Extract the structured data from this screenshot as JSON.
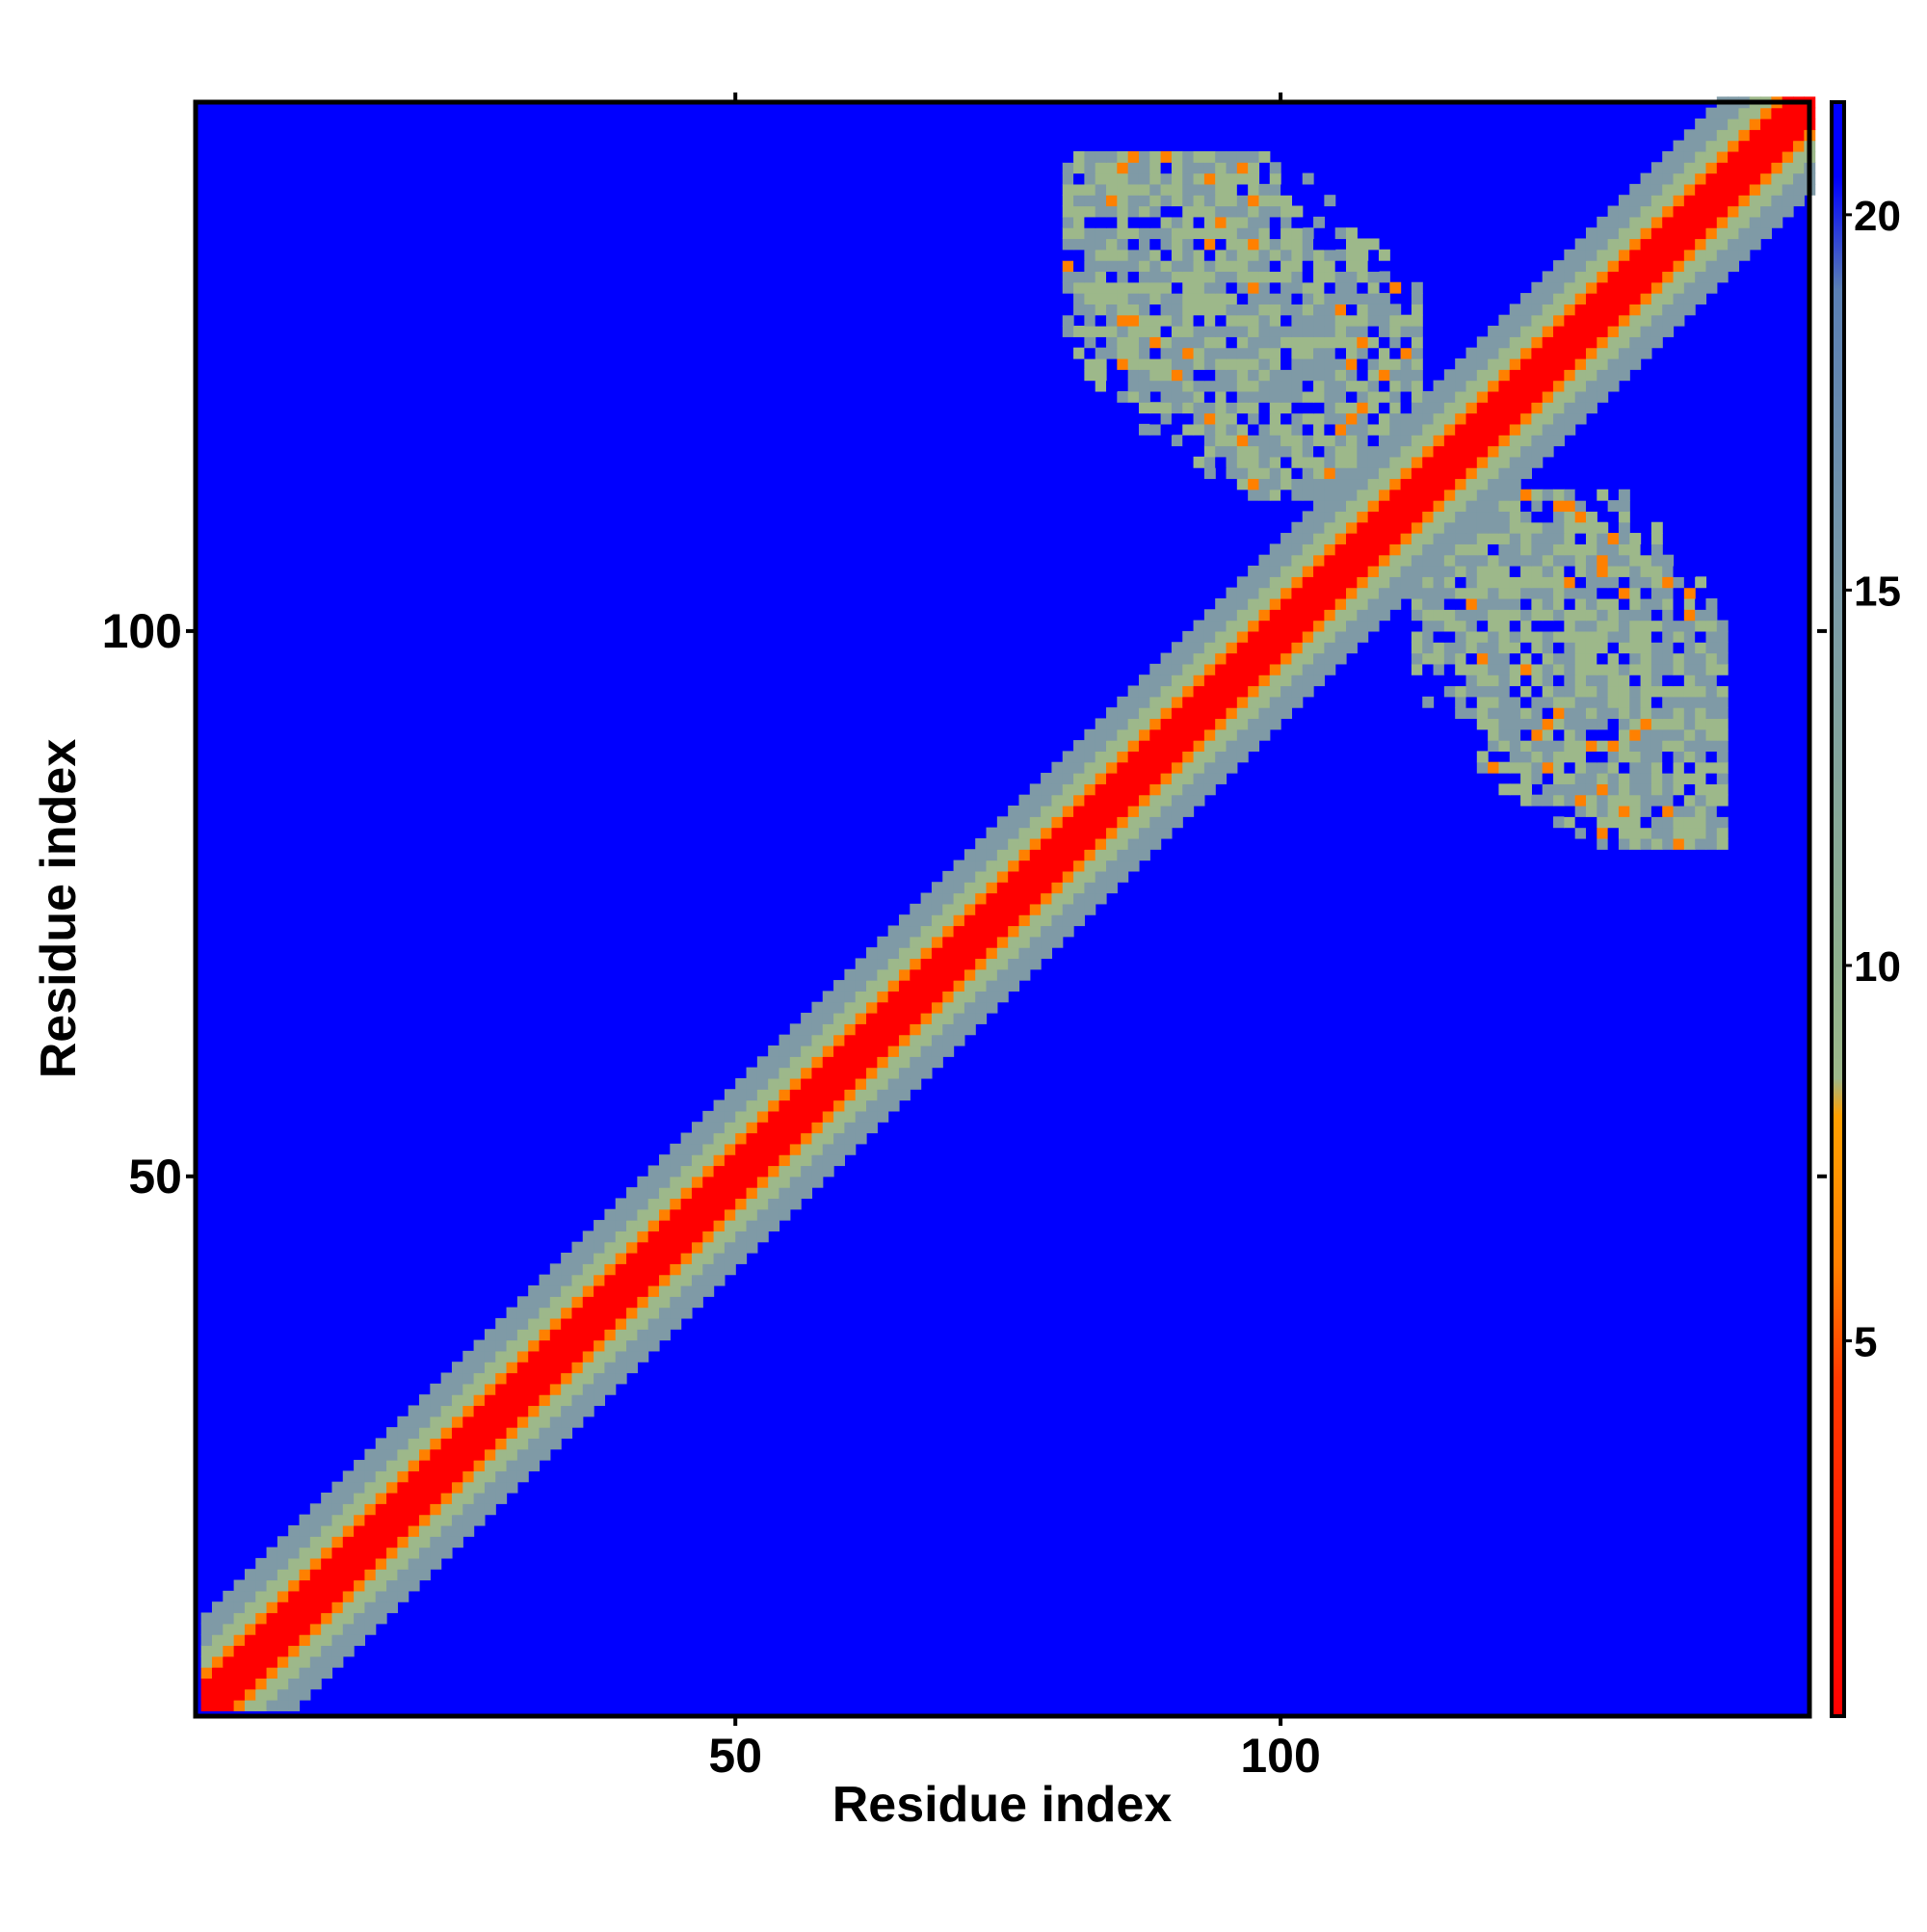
{
  "chart_data": {
    "type": "heatmap",
    "title": "",
    "xlabel": "Residue index",
    "ylabel": "Residue index",
    "n_residues": 148,
    "xlim": [
      1,
      148
    ],
    "ylim": [
      1,
      148
    ],
    "x_ticks": [
      "50",
      "100"
    ],
    "y_ticks": [
      "50",
      "100"
    ],
    "colorbar": {
      "range": [
        0,
        21.5
      ],
      "ticks": [
        "5",
        "10",
        "15",
        "20"
      ],
      "stops": [
        {
          "value": 0,
          "color": "#ff0000"
        },
        {
          "value": 4.5,
          "color": "#ff3a00"
        },
        {
          "value": 6,
          "color": "#ff8000"
        },
        {
          "value": 8,
          "color": "#ffa000"
        },
        {
          "value": 8.5,
          "color": "#9db88a"
        },
        {
          "value": 10,
          "color": "#8fb08e"
        },
        {
          "value": 15,
          "color": "#7a9aa8"
        },
        {
          "value": 19,
          "color": "#5a7fb4"
        },
        {
          "value": 20.5,
          "color": "#0000ff"
        }
      ]
    },
    "colors": {
      "background": "#0000ff",
      "diagonal": "#ff0000",
      "near": "#ff8000",
      "mid": "#9db88a",
      "far": "#7f9aa6"
    },
    "features": {
      "diagonal_band": {
        "half_width_residues": 8
      },
      "contact_region_a": {
        "x": [
          80,
          112
        ],
        "y": [
          112,
          143
        ]
      },
      "contact_region_b": {
        "x": [
          112,
          140
        ],
        "y": [
          80,
          112
        ]
      }
    }
  }
}
